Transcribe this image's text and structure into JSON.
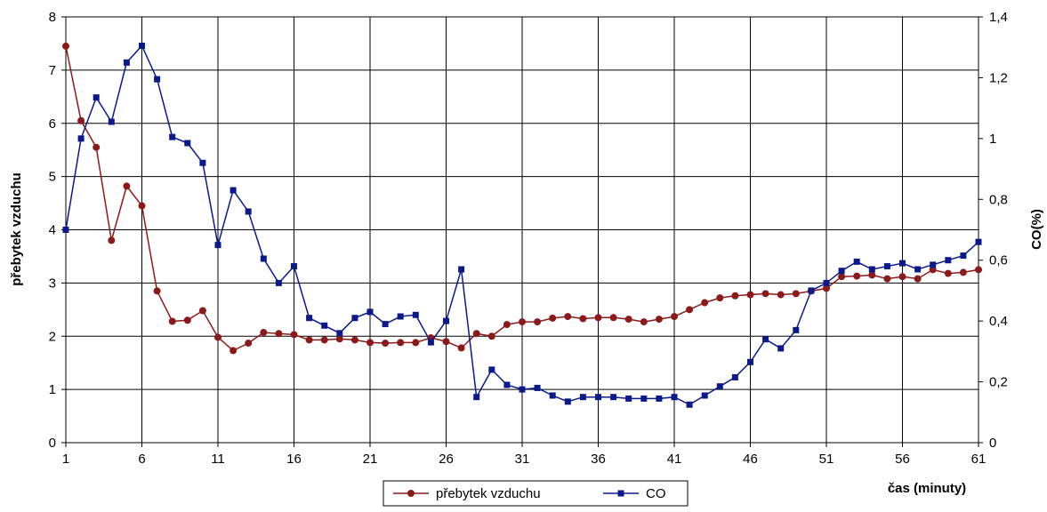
{
  "chart_data": {
    "type": "line",
    "x": [
      1,
      2,
      3,
      4,
      5,
      6,
      7,
      8,
      9,
      10,
      11,
      12,
      13,
      14,
      15,
      16,
      17,
      18,
      19,
      20,
      21,
      22,
      23,
      24,
      25,
      26,
      27,
      28,
      29,
      30,
      31,
      32,
      33,
      34,
      35,
      36,
      37,
      38,
      39,
      40,
      41,
      42,
      43,
      44,
      45,
      46,
      47,
      48,
      49,
      50,
      51,
      52,
      53,
      54,
      55,
      56,
      57,
      58,
      59,
      60,
      61
    ],
    "x_ticks": [
      1,
      6,
      11,
      16,
      21,
      26,
      31,
      36,
      41,
      46,
      51,
      56,
      61
    ],
    "xlabel": "čas (minuty)",
    "ylabel": "přebytek vzduchu",
    "y2label": "CO(%)",
    "ylim": [
      0,
      8
    ],
    "y2lim": [
      0,
      1.4
    ],
    "y_ticks": [
      "0",
      "1",
      "2",
      "3",
      "4",
      "5",
      "6",
      "7",
      "8"
    ],
    "y2_ticks": [
      "0",
      "0,2",
      "0,4",
      "0,6",
      "0,8",
      "1",
      "1,2",
      "1,4"
    ],
    "grid": true,
    "legend_position": "bottom",
    "series": [
      {
        "name": "přebytek vzduchu",
        "axis": "left",
        "color": "#8B1A1A",
        "marker": "circle",
        "values": [
          7.45,
          6.05,
          5.55,
          3.8,
          4.82,
          4.45,
          2.85,
          2.28,
          2.3,
          2.48,
          1.98,
          1.73,
          1.87,
          2.07,
          2.05,
          2.03,
          1.93,
          1.93,
          1.95,
          1.93,
          1.88,
          1.87,
          1.88,
          1.88,
          1.97,
          1.9,
          1.78,
          2.05,
          2.0,
          2.22,
          2.27,
          2.27,
          2.34,
          2.37,
          2.33,
          2.35,
          2.35,
          2.32,
          2.27,
          2.32,
          2.37,
          2.5,
          2.63,
          2.72,
          2.76,
          2.78,
          2.8,
          2.78,
          2.8,
          2.85,
          2.9,
          3.12,
          3.13,
          3.15,
          3.08,
          3.12,
          3.08,
          3.25,
          3.18,
          3.2,
          3.25
        ]
      },
      {
        "name": "CO",
        "axis": "right",
        "color": "#0A1A8A",
        "marker": "square",
        "values": [
          0.7,
          1.0,
          1.135,
          1.055,
          1.25,
          1.305,
          1.195,
          1.005,
          0.985,
          0.92,
          0.65,
          0.83,
          0.76,
          0.605,
          0.525,
          0.58,
          0.41,
          0.385,
          0.36,
          0.41,
          0.43,
          0.39,
          0.415,
          0.42,
          0.33,
          0.4,
          0.57,
          0.15,
          0.24,
          0.19,
          0.175,
          0.18,
          0.155,
          0.135,
          0.15,
          0.15,
          0.15,
          0.145,
          0.145,
          0.145,
          0.15,
          0.125,
          0.155,
          0.185,
          0.215,
          0.265,
          0.34,
          0.31,
          0.37,
          0.5,
          0.525,
          0.565,
          0.595,
          0.57,
          0.58,
          0.59,
          0.57,
          0.585,
          0.6,
          0.615,
          0.66
        ]
      }
    ]
  }
}
